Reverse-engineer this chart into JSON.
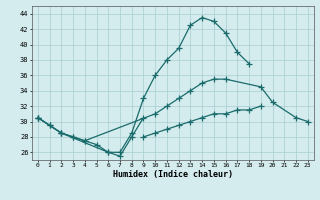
{
  "xlabel": "Humidex (Indice chaleur)",
  "xlim": [
    -0.5,
    23.5
  ],
  "ylim": [
    25,
    45
  ],
  "yticks": [
    26,
    28,
    30,
    32,
    34,
    36,
    38,
    40,
    42,
    44
  ],
  "xticks": [
    0,
    1,
    2,
    3,
    4,
    5,
    6,
    7,
    8,
    9,
    10,
    11,
    12,
    13,
    14,
    15,
    16,
    17,
    18,
    19,
    20,
    21,
    22,
    23
  ],
  "bg_color": "#d4ecee",
  "grid_color": "#a8cdd1",
  "line_color": "#1a6b6b",
  "line1_x": [
    0,
    1,
    2,
    3,
    4,
    5,
    6,
    7,
    8,
    9,
    10,
    11,
    12,
    13,
    14,
    15,
    16,
    17,
    18
  ],
  "line1_y": [
    30.5,
    29.5,
    28.5,
    28,
    27.5,
    27,
    26,
    26,
    28.5,
    33,
    36,
    38,
    39.5,
    42.5,
    43.5,
    43,
    41.5,
    39,
    37.5
  ],
  "line2_x": [
    0,
    2,
    6,
    7,
    8,
    9
  ],
  "line2_y": [
    30.5,
    28.5,
    26,
    25.5,
    28,
    30.5
  ],
  "line3_x": [
    0,
    1,
    2,
    3,
    4,
    10,
    11,
    12,
    13,
    14,
    15,
    16,
    19,
    20,
    22,
    23
  ],
  "line3_y": [
    30.5,
    29.5,
    28.5,
    28,
    27.5,
    31,
    32,
    33,
    34,
    35,
    35.5,
    35.5,
    34.5,
    32.5,
    30.5,
    30
  ],
  "line4_x": [
    9,
    10,
    11,
    12,
    13,
    14,
    15,
    16,
    17,
    18,
    19
  ],
  "line4_y": [
    28,
    28.5,
    29,
    29.5,
    30,
    30.5,
    31,
    31,
    31.5,
    31.5,
    32
  ]
}
